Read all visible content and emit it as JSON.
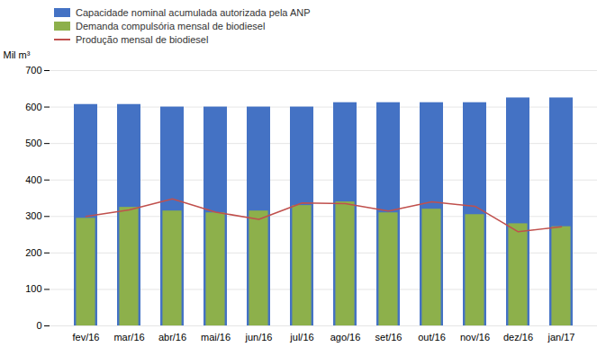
{
  "chart_data": {
    "type": "bar",
    "categories": [
      "fev/16",
      "mar/16",
      "abr/16",
      "mai/16",
      "jun/16",
      "jul/16",
      "ago/16",
      "set/16",
      "out/16",
      "nov/16",
      "dez/16",
      "jan/17"
    ],
    "series": [
      {
        "name": "Capacidade nominal acumulada autorizada pela ANP",
        "type": "bar",
        "color": "#4472C4",
        "values": [
          607,
          607,
          600,
          600,
          600,
          600,
          612,
          612,
          612,
          612,
          625,
          625
        ]
      },
      {
        "name": "Demanda compulsória mensal de biodiesel",
        "type": "bar",
        "color": "#8DB04B",
        "values": [
          295,
          325,
          315,
          310,
          315,
          330,
          340,
          310,
          320,
          305,
          280,
          272
        ]
      },
      {
        "name": "Produção mensal de biodiesel",
        "type": "line",
        "color": "#C0504D",
        "values": [
          300,
          318,
          348,
          312,
          292,
          337,
          335,
          315,
          340,
          328,
          258,
          272
        ]
      }
    ],
    "ylabel": "Mil m³",
    "ylim": [
      0,
      700
    ],
    "yticks": [
      0,
      100,
      200,
      300,
      400,
      500,
      600,
      700
    ],
    "grid": true,
    "legend": "upper left"
  }
}
